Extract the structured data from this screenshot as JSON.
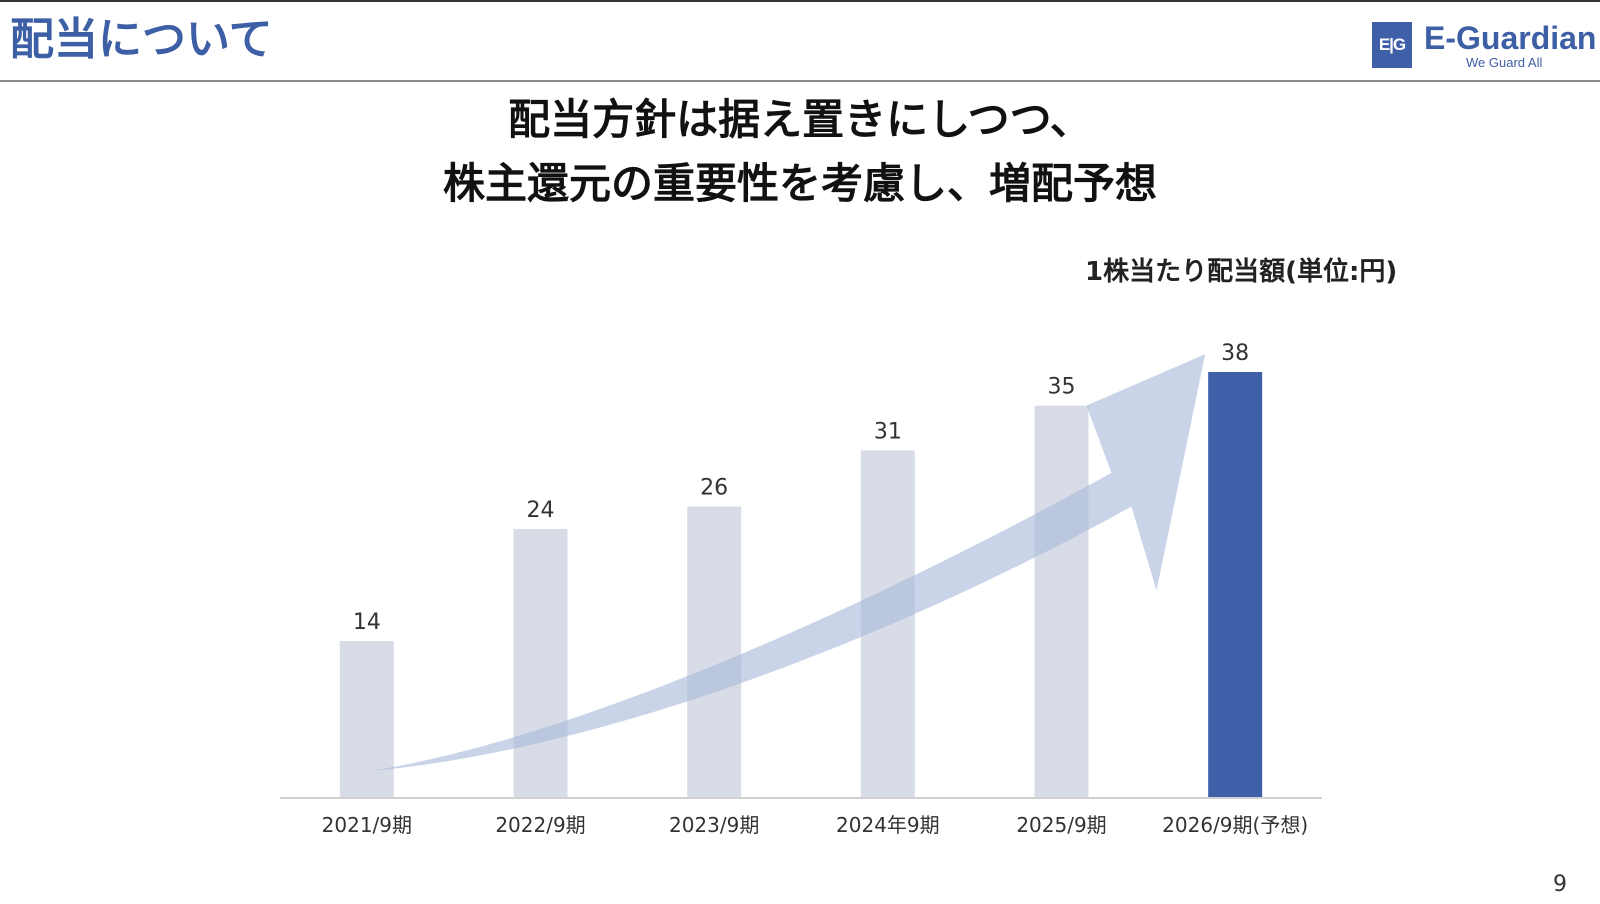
{
  "header": {
    "title": "配当について",
    "logo": {
      "mark": "E|G",
      "name": "E-Guardian",
      "tagline": "We Guard All"
    }
  },
  "headline": {
    "line1": "配当方針は据え置きにしつつ、",
    "line2": "株主還元の重要性を考慮し、増配予想"
  },
  "page_number": "9",
  "colors": {
    "accent": "#3f5fa9",
    "bar_past": "#d7dce6",
    "arrow": "#a9b9da"
  },
  "chart_data": {
    "type": "bar",
    "title": "1株当たり配当額(単位:円)",
    "categories": [
      "2021/9期",
      "2022/9期",
      "2023/9期",
      "2024年9期",
      "2025/9期",
      "2026/9期(予想)"
    ],
    "values": [
      14,
      24,
      26,
      31,
      35,
      38
    ],
    "data_labels": [
      "14",
      "24",
      "26",
      "31",
      "35",
      "38"
    ],
    "highlight_index": 5,
    "ylim": [
      0,
      38
    ],
    "grid": false,
    "legend": "none",
    "annotation": "upward trend arrow"
  }
}
